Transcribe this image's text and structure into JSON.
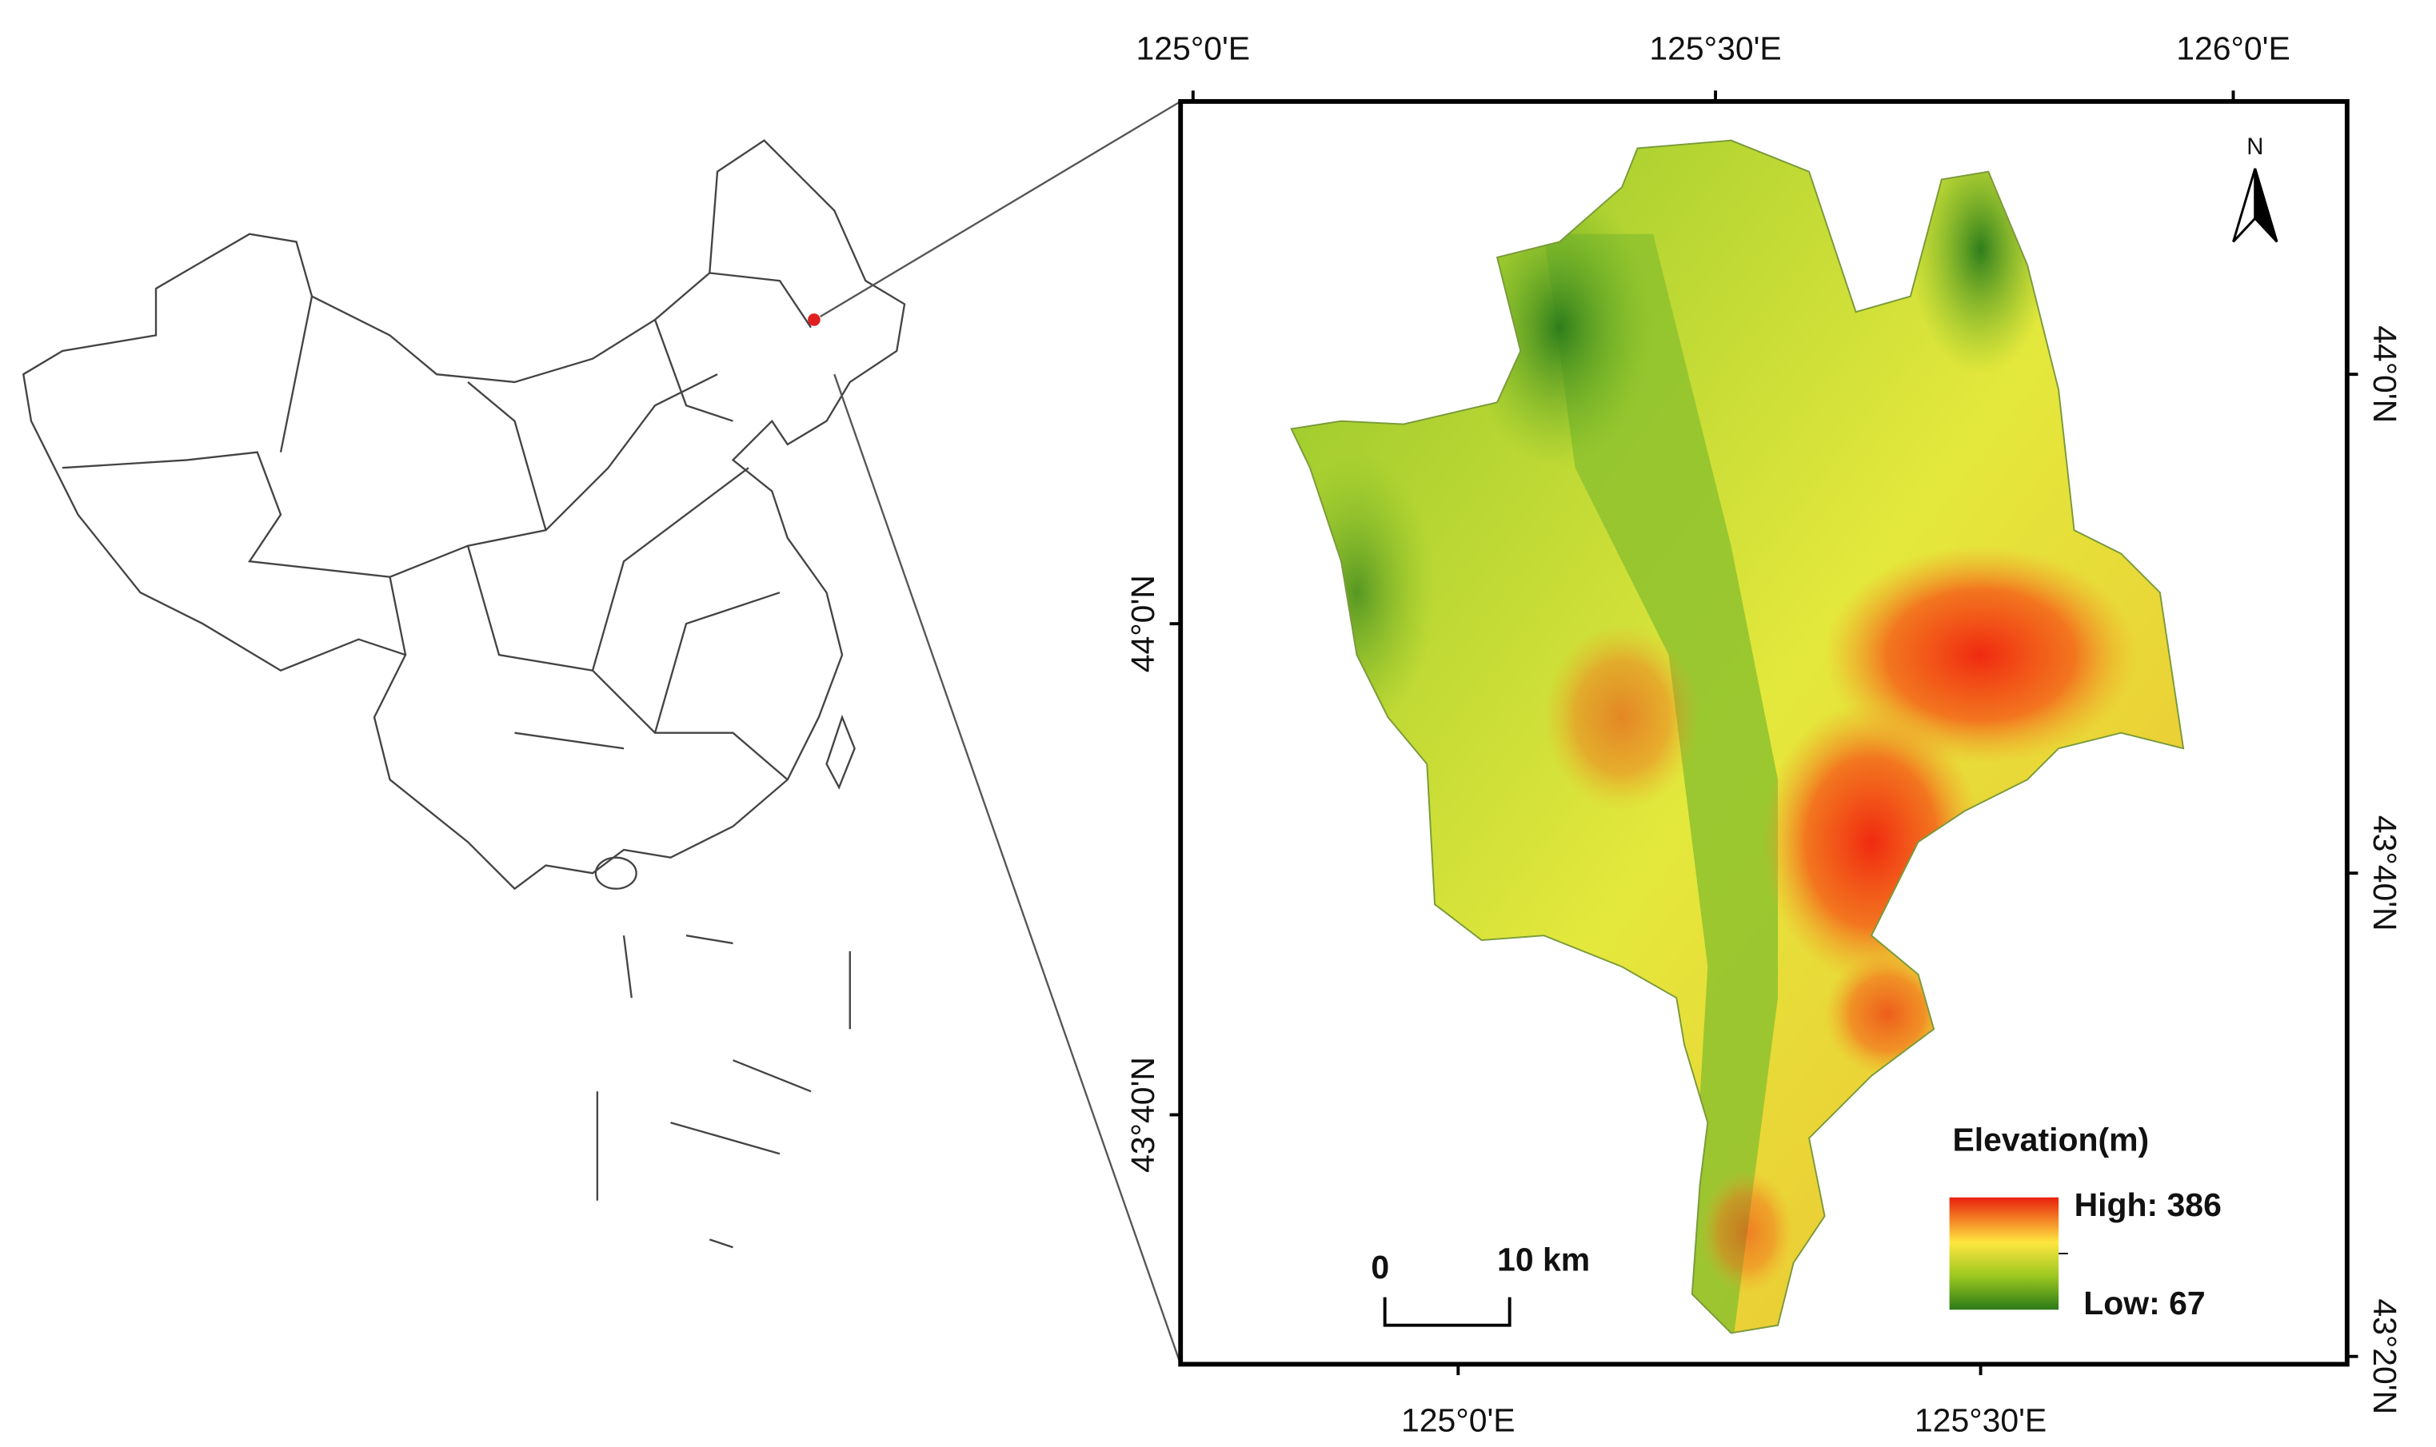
{
  "map": {
    "top_ticks": [
      "125°0'E",
      "125°30'E",
      "126°0'E"
    ],
    "bottom_ticks": [
      "125°0'E",
      "125°30'E"
    ],
    "left_ticks": [
      "44°0'N",
      "43°40'N"
    ],
    "right_ticks": [
      "44°0'N",
      "43°40'N",
      "43°20'N"
    ],
    "north_label": "N",
    "legend": {
      "title": "Elevation(m)",
      "high": "High: 386",
      "low": "Low: 67"
    },
    "scale_bar": {
      "start": "0",
      "end": "10 km"
    }
  }
}
